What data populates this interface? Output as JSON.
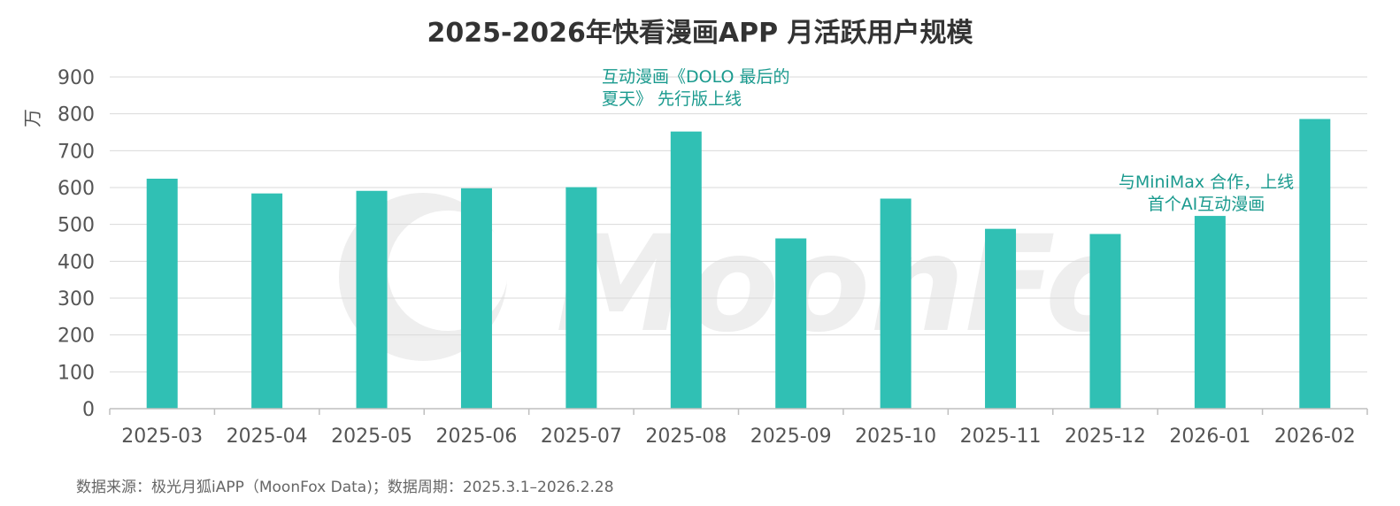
{
  "chart_data": {
    "type": "bar",
    "title": "2025-2026年快看漫画APP 月活跃用户规模",
    "ylabel": "万",
    "xlabel": "",
    "ylim": [
      0,
      900
    ],
    "yticks": [
      0,
      100,
      200,
      300,
      400,
      500,
      600,
      700,
      800,
      900
    ],
    "categories": [
      "2025-03",
      "2025-04",
      "2025-05",
      "2025-06",
      "2025-07",
      "2025-08",
      "2025-09",
      "2025-10",
      "2025-11",
      "2025-12",
      "2026-01",
      "2026-02"
    ],
    "values": [
      624,
      584,
      591,
      598,
      601,
      752,
      462,
      570,
      488,
      474,
      523,
      786
    ],
    "bar_color": "#30c0b4",
    "annotations": [
      {
        "category": "2025-08",
        "lines": [
          "互动漫画《DOLO 最后的",
          "夏天》 先行版上线"
        ],
        "color": "#1a9a8e"
      },
      {
        "category": "2026-01",
        "lines": [
          "与MiniMax 合作，上线",
          "首个AI互动漫画"
        ],
        "color": "#1a9a8e"
      }
    ],
    "grid": true
  },
  "source": "数据来源：极光月狐iAPP（MoonFox Data)；数据周期：2025.3.1–2026.2.28",
  "watermark": "MoonFox"
}
